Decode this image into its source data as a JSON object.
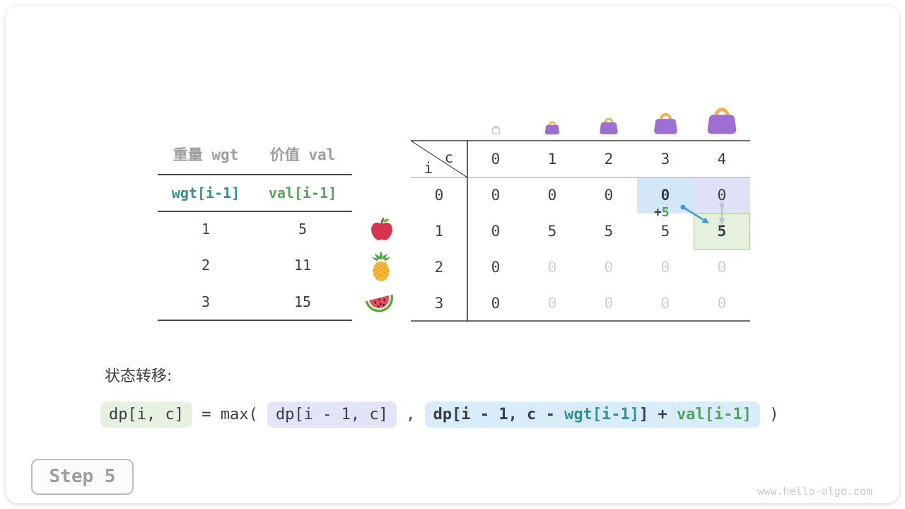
{
  "card": {
    "step_label": "Step 5",
    "watermark": "www.hello-algo.com"
  },
  "items_table": {
    "col_headers": [
      "重量 wgt",
      "价值 val"
    ],
    "index_row": [
      "wgt[i-1]",
      "val[i-1]"
    ],
    "rows": [
      {
        "wgt": "1",
        "val": "5",
        "fruit": "apple"
      },
      {
        "wgt": "2",
        "val": "11",
        "fruit": "pineapple"
      },
      {
        "wgt": "3",
        "val": "15",
        "fruit": "watermelon"
      }
    ]
  },
  "dp_table": {
    "corner_top": "c",
    "corner_bottom": "i",
    "col_headers": [
      "0",
      "1",
      "2",
      "3",
      "4"
    ],
    "row_headers": [
      "0",
      "1",
      "2",
      "3"
    ],
    "values": [
      [
        "0",
        "0",
        "0",
        "0",
        "0"
      ],
      [
        "0",
        "5",
        "5",
        "5",
        "5"
      ],
      [
        "0",
        "0",
        "0",
        "0",
        "0"
      ],
      [
        "0",
        "0",
        "0",
        "0",
        "0"
      ]
    ],
    "states": [
      [
        "n-",
        "n-",
        "n-",
        "bB",
        "nL"
      ],
      [
        "n-",
        "n-",
        "n-",
        "n-",
        "bG"
      ],
      [
        "n-",
        "f-",
        "f-",
        "f-",
        "f-"
      ],
      [
        "n-",
        "f-",
        "f-",
        "f-",
        "f-"
      ]
    ],
    "annotation_plus": "+",
    "annotation_value": "5"
  },
  "formula": {
    "label": "状态转移:",
    "lhs": "dp[i, c]",
    "equals": " = max( ",
    "arg1": "dp[i - 1, c]",
    "comma": " , ",
    "arg2_pre": "dp[i - 1, c - ",
    "arg2_wgt": "wgt[i-1]",
    "arg2_mid": "] + ",
    "arg2_val": "val[i-1]",
    "close": " )"
  },
  "colors": {
    "accent_teal": "#2f9295",
    "accent_green": "#55a35a",
    "arrow_blue": "#4596e3",
    "arrow_gray": "#c2c2c2",
    "highlight_blue": "#d2e7f8",
    "highlight_lavender": "#dfe2f6",
    "highlight_green": "#e5f0dd",
    "bag_purple": "#9d6fd3",
    "bag_handle": "#f2b24e"
  }
}
